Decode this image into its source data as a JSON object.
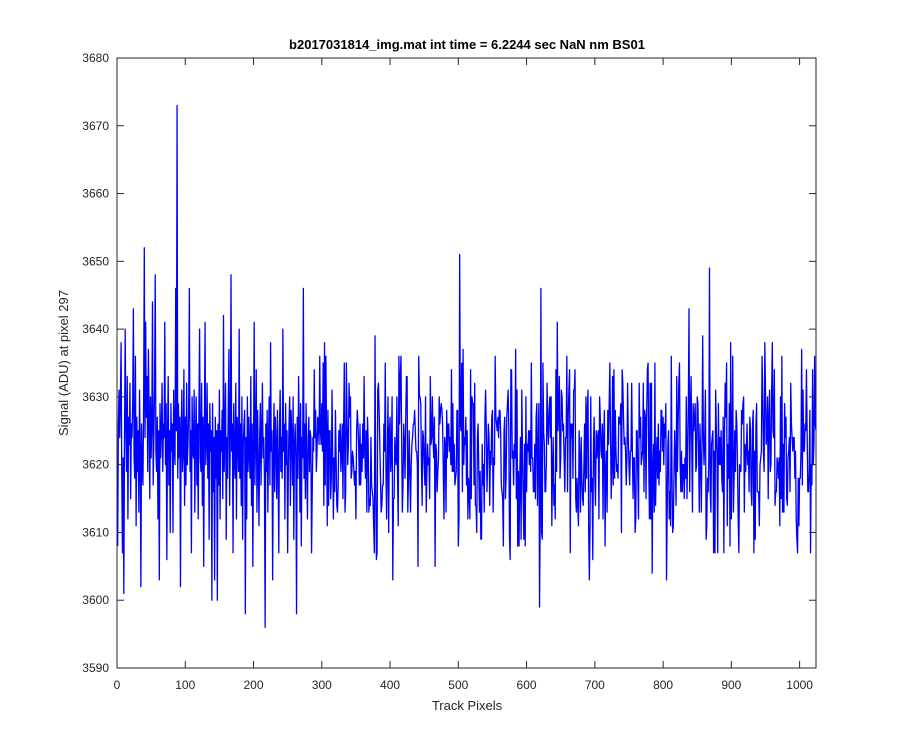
{
  "chart_data": {
    "type": "line",
    "title": "b2017031814_img.mat int time = 6.2244 sec  NaN nm BS01",
    "xlabel": "Track Pixels",
    "ylabel": "Signal (ADU) at pixel 297",
    "xlim": [
      0,
      1024
    ],
    "ylim": [
      3590,
      3680
    ],
    "xticks": [
      0,
      100,
      200,
      300,
      400,
      500,
      600,
      700,
      800,
      900,
      1000
    ],
    "yticks": [
      3590,
      3600,
      3610,
      3620,
      3630,
      3640,
      3650,
      3660,
      3670,
      3680
    ],
    "grid": false,
    "legend": "none",
    "line_color": "#0000ff",
    "series": [
      {
        "x_start": 1,
        "x_step": 1,
        "noise_mean": 3622,
        "noise_range": [
          3596,
          3673
        ],
        "values": [
          3608,
          3626,
          3631,
          3624,
          3630,
          3638,
          3618,
          3607,
          3621,
          3601,
          3624,
          3640,
          3625,
          3619,
          3633,
          3612,
          3627,
          3623,
          3632,
          3615,
          3626,
          3624,
          3629,
          3643,
          3621,
          3618,
          3636,
          3611,
          3627,
          3619,
          3625,
          3613,
          3631,
          3622,
          3602,
          3626,
          3620,
          3617,
          3629,
          3652,
          3624,
          3641,
          3627,
          3633,
          3619,
          3637,
          3628,
          3615,
          3630,
          3621,
          3626,
          3644,
          3617,
          3624,
          3631,
          3648,
          3622,
          3619,
          3627,
          3612,
          3625,
          3603,
          3629,
          3621,
          3625,
          3632,
          3619,
          3626,
          3624,
          3641,
          3620,
          3629,
          3606,
          3624,
          3633,
          3617,
          3625,
          3610,
          3629,
          3622,
          3626,
          3610,
          3631,
          3623,
          3620,
          3646,
          3625,
          3673,
          3618,
          3629,
          3621,
          3627,
          3602,
          3625,
          3631,
          3619,
          3622,
          3634,
          3614,
          3627,
          3617,
          3632,
          3620,
          3623,
          3628,
          3646,
          3619,
          3625,
          3607,
          3630,
          3622,
          3621,
          3631,
          3613,
          3624,
          3630,
          3617,
          3626,
          3612,
          3628,
          3640,
          3621,
          3619,
          3632,
          3614,
          3627,
          3605,
          3625,
          3641,
          3620,
          3623,
          3632,
          3618,
          3626,
          3609,
          3629,
          3622,
          3625,
          3600,
          3629,
          3616,
          3624,
          3603,
          3627,
          3618,
          3625,
          3600,
          3626,
          3617,
          3631,
          3612,
          3625,
          3622,
          3628,
          3615,
          3642,
          3619,
          3625,
          3632,
          3609,
          3624,
          3618,
          3629,
          3637,
          3614,
          3624,
          3648,
          3622,
          3626,
          3607,
          3629,
          3621,
          3618,
          3632,
          3612,
          3627,
          3624,
          3619,
          3640,
          3618,
          3626,
          3614,
          3630,
          3609,
          3623,
          3626,
          3628,
          3598,
          3624,
          3612,
          3630,
          3619,
          3627,
          3621,
          3618,
          3633,
          3614,
          3626,
          3605,
          3622,
          3641,
          3617,
          3625,
          3634,
          3613,
          3628,
          3620,
          3611,
          3624,
          3629,
          3617,
          3625,
          3632,
          3621,
          3624,
          3618,
          3596,
          3626,
          3619,
          3628,
          3613,
          3624,
          3630,
          3617,
          3638,
          3622,
          3625,
          3603,
          3621,
          3629,
          3616,
          3627,
          3623,
          3615,
          3628,
          3620,
          3607,
          3625,
          3631,
          3619,
          3624,
          3618,
          3640,
          3622,
          3626,
          3612,
          3629,
          3620,
          3625,
          3607,
          3619,
          3626,
          3630,
          3614,
          3628,
          3624,
          3617,
          3630,
          3609,
          3623,
          3626,
          3621,
          3598,
          3627,
          3618,
          3633,
          3625,
          3613,
          3629,
          3608,
          3624,
          3621,
          3646,
          3618,
          3626,
          3615,
          3629,
          3620,
          3612,
          3624,
          3627,
          3619,
          3625
        ]
      }
    ]
  }
}
